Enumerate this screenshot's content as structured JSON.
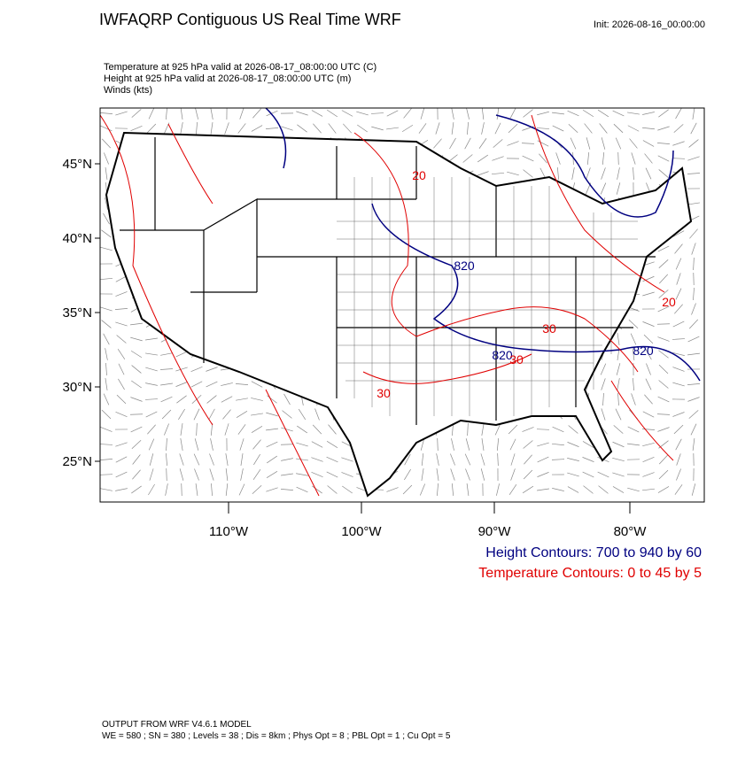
{
  "header": {
    "title": "IWFAQRP Contiguous US Real Time WRF",
    "init": "Init: 2026-08-16_00:00:00",
    "lines": [
      "Temperature at 925 hPa valid at 2026-08-17_08:00:00 UTC   (C)",
      "Height at 925 hPa valid at 2026-08-17_08:00:00 UTC   (m)",
      "Winds   (kts)"
    ]
  },
  "map": {
    "lat_labels": [
      "45°N",
      "40°N",
      "35°N",
      "30°N",
      "25°N"
    ],
    "lon_labels": [
      "110°W",
      "100°W",
      "90°W",
      "80°W"
    ],
    "contour_labels": [
      {
        "text": "20",
        "color": "#e00000"
      },
      {
        "text": "820",
        "color": "#000080"
      },
      {
        "text": "20",
        "color": "#e00000"
      },
      {
        "text": "30",
        "color": "#e00000"
      },
      {
        "text": "820",
        "color": "#000080"
      },
      {
        "text": "30",
        "color": "#e00000"
      },
      {
        "text": "820",
        "color": "#000080"
      },
      {
        "text": "30",
        "color": "#e00000"
      }
    ]
  },
  "legend": [
    {
      "text": "Height Contours: 700 to 940 by 60",
      "color": "#000080"
    },
    {
      "text": "Temperature Contours: 0 to 45 by 5",
      "color": "#e00000"
    }
  ],
  "footer": [
    "OUTPUT FROM WRF V4.6.1 MODEL",
    "WE = 580 ; SN = 380 ; Levels = 38 ; Dis = 8km ; Phys Opt = 8 ; PBL Opt = 1 ; Cu Opt = 5"
  ]
}
